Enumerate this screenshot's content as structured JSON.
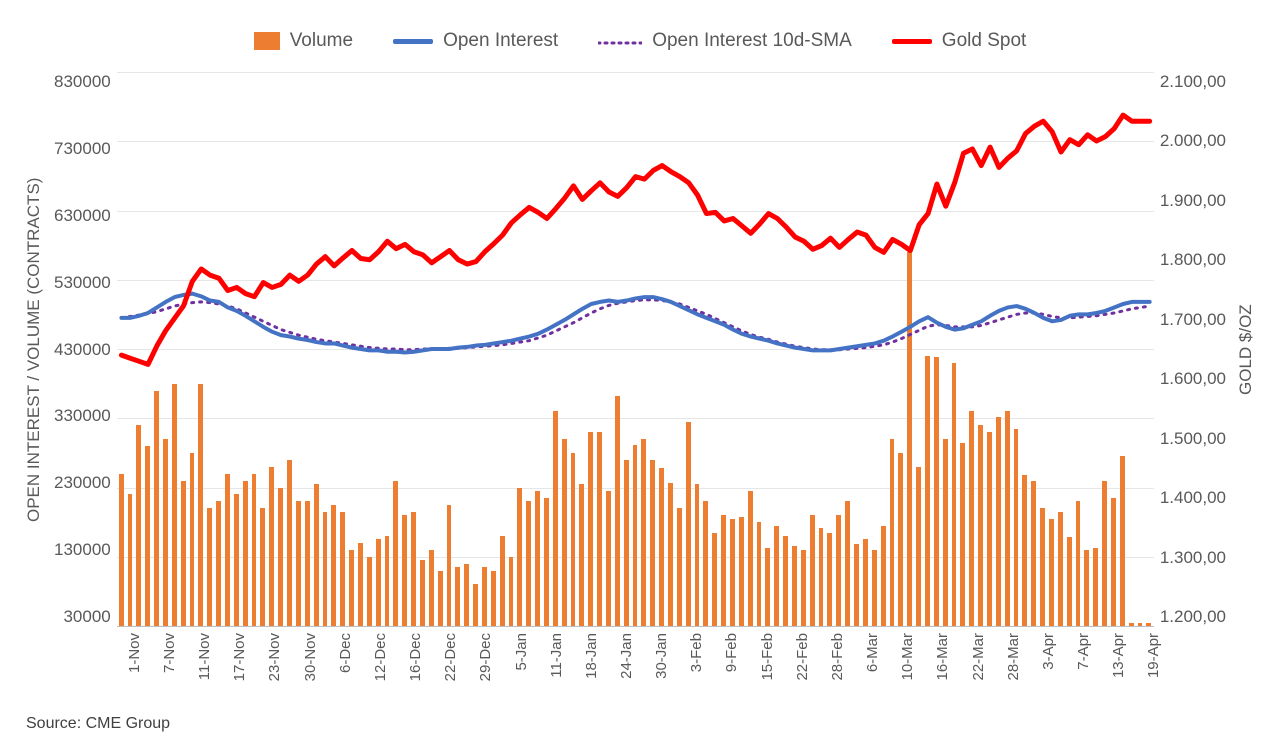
{
  "legend": {
    "volume": "Volume",
    "oi": "Open Interest",
    "oi_sma": "Open Interest 10d-SMA",
    "gold": "Gold Spot"
  },
  "colors": {
    "volume_bar": "#ed7d31",
    "oi_line": "#4472c4",
    "oi_sma_line": "#7030a0",
    "gold_line": "#ff0000",
    "grid": "#e6e6e6",
    "axis_text": "#595959",
    "background": "#ffffff"
  },
  "y_left": {
    "title": "OPEN INTEREST / VOLUME (CONTRACTS)",
    "min": 30000,
    "max": 830000,
    "ticks": [
      830000,
      730000,
      630000,
      530000,
      430000,
      330000,
      230000,
      130000,
      30000
    ],
    "tick_labels": [
      "830000",
      "730000",
      "630000",
      "530000",
      "430000",
      "330000",
      "230000",
      "130000",
      "30000"
    ]
  },
  "y_right": {
    "title": "GOLD $/OZ",
    "min": 1200,
    "max": 2100,
    "ticks": [
      2100,
      2000,
      1900,
      1800,
      1700,
      1600,
      1500,
      1400,
      1300,
      1200
    ],
    "tick_labels": [
      "2.100,00",
      "2.000,00",
      "1.900,00",
      "1.800,00",
      "1.700,00",
      "1.600,00",
      "1.500,00",
      "1.400,00",
      "1.300,00",
      "1.200,00"
    ]
  },
  "x_labels_visible": [
    "1-Nov",
    "",
    "7-Nov",
    "",
    "11-Nov",
    "",
    "17-Nov",
    "",
    "23-Nov",
    "",
    "30-Nov",
    "",
    "6-Dec",
    "",
    "12-Dec",
    "",
    "16-Dec",
    "",
    "22-Dec",
    "",
    "29-Dec",
    "",
    "5-Jan",
    "",
    "11-Jan",
    "",
    "18-Jan",
    "",
    "24-Jan",
    "",
    "30-Jan",
    "",
    "3-Feb",
    "",
    "9-Feb",
    "",
    "15-Feb",
    "",
    "22-Feb",
    "",
    "28-Feb",
    "",
    "6-Mar",
    "",
    "10-Mar",
    "",
    "16-Mar",
    "",
    "22-Mar",
    "",
    "28-Mar",
    "",
    "3-Apr",
    "",
    "7-Apr",
    "",
    "13-Apr",
    "",
    "19-Apr"
  ],
  "series": {
    "n_points": 117,
    "volume": [
      250000,
      220000,
      320000,
      290000,
      370000,
      300000,
      380000,
      240000,
      280000,
      380000,
      200000,
      210000,
      250000,
      220000,
      240000,
      250000,
      200000,
      260000,
      230000,
      270000,
      210000,
      210000,
      235000,
      195000,
      205000,
      195000,
      140000,
      150000,
      130000,
      155000,
      160000,
      240000,
      190000,
      195000,
      125000,
      140000,
      110000,
      205000,
      115000,
      120000,
      90000,
      115000,
      110000,
      160000,
      130000,
      230000,
      210000,
      225000,
      215000,
      340000,
      300000,
      280000,
      235000,
      310000,
      310000,
      225000,
      362000,
      270000,
      292000,
      300000,
      270000,
      258000,
      237000,
      200000,
      325000,
      235000,
      210000,
      165000,
      190000,
      185000,
      188000,
      225000,
      180000,
      142000,
      175000,
      160000,
      145000,
      140000,
      190000,
      172000,
      165000,
      190000,
      210000,
      148000,
      155000,
      140000,
      175000,
      300000,
      280000,
      570000,
      260000,
      420000,
      418000,
      300000,
      410000,
      295000,
      340000,
      320000,
      310000,
      332000,
      340000,
      315000,
      248000,
      240000,
      200000,
      185000,
      195000,
      158000,
      210000,
      140000,
      142000,
      240000,
      215000,
      275000,
      35000,
      35000,
      35000
    ],
    "open_interest": [
      475000,
      475000,
      478000,
      482000,
      490000,
      498000,
      505000,
      508000,
      510000,
      506000,
      500000,
      498000,
      490000,
      485000,
      478000,
      470000,
      462000,
      455000,
      450000,
      448000,
      445000,
      443000,
      440000,
      438000,
      438000,
      435000,
      432000,
      430000,
      428000,
      428000,
      426000,
      426000,
      425000,
      426000,
      428000,
      430000,
      430000,
      430000,
      432000,
      433000,
      435000,
      436000,
      438000,
      440000,
      442000,
      445000,
      448000,
      452000,
      458000,
      465000,
      472000,
      480000,
      488000,
      495000,
      498000,
      500000,
      498000,
      500000,
      503000,
      505000,
      505000,
      502000,
      498000,
      492000,
      486000,
      480000,
      475000,
      470000,
      465000,
      458000,
      452000,
      448000,
      445000,
      442000,
      438000,
      435000,
      432000,
      430000,
      428000,
      428000,
      428000,
      430000,
      432000,
      434000,
      436000,
      438000,
      442000,
      448000,
      455000,
      462000,
      470000,
      476000,
      468000,
      462000,
      458000,
      460000,
      465000,
      470000,
      478000,
      485000,
      490000,
      492000,
      488000,
      482000,
      475000,
      470000,
      472000,
      478000,
      480000,
      480000,
      482000,
      485000,
      490000,
      495000,
      498000,
      498000,
      498000
    ],
    "oi_sma": [
      475000,
      477000,
      479000,
      481000,
      484000,
      488000,
      492000,
      495000,
      497000,
      498000,
      497000,
      495000,
      492000,
      488000,
      482000,
      476000,
      470000,
      464000,
      458000,
      454000,
      450000,
      447000,
      444000,
      442000,
      440000,
      438000,
      436000,
      434000,
      432000,
      431000,
      430000,
      430000,
      429000,
      429000,
      430000,
      430000,
      430000,
      431000,
      431000,
      432000,
      433000,
      434000,
      435000,
      436000,
      438000,
      440000,
      442000,
      446000,
      450000,
      456000,
      462000,
      468000,
      475000,
      482000,
      488000,
      493000,
      496000,
      498000,
      500000,
      501000,
      501000,
      500000,
      498000,
      495000,
      490000,
      485000,
      480000,
      474000,
      468000,
      462000,
      456000,
      451000,
      447000,
      444000,
      440000,
      437000,
      434000,
      432000,
      430000,
      429000,
      429000,
      429000,
      430000,
      431000,
      432000,
      434000,
      436000,
      440000,
      445000,
      451000,
      457000,
      463000,
      465000,
      464000,
      462000,
      462000,
      462000,
      464000,
      468000,
      472000,
      476000,
      480000,
      482000,
      482000,
      480000,
      477000,
      475000,
      475000,
      476000,
      477000,
      478000,
      480000,
      482000,
      485000,
      488000,
      490000,
      492000
    ],
    "gold_spot": [
      1640,
      1635,
      1630,
      1625,
      1655,
      1680,
      1700,
      1720,
      1760,
      1780,
      1770,
      1765,
      1745,
      1750,
      1740,
      1735,
      1758,
      1750,
      1755,
      1770,
      1760,
      1770,
      1788,
      1800,
      1785,
      1798,
      1810,
      1797,
      1795,
      1808,
      1825,
      1813,
      1820,
      1808,
      1803,
      1790,
      1800,
      1810,
      1795,
      1788,
      1792,
      1808,
      1821,
      1835,
      1855,
      1868,
      1880,
      1872,
      1862,
      1878,
      1895,
      1915,
      1893,
      1907,
      1920,
      1905,
      1898,
      1912,
      1930,
      1926,
      1940,
      1948,
      1938,
      1930,
      1920,
      1900,
      1870,
      1872,
      1858,
      1862,
      1850,
      1838,
      1853,
      1870,
      1862,
      1848,
      1832,
      1825,
      1812,
      1818,
      1830,
      1815,
      1828,
      1840,
      1835,
      1815,
      1807,
      1828,
      1820,
      1810,
      1852,
      1870,
      1918,
      1882,
      1920,
      1968,
      1975,
      1948,
      1978,
      1945,
      1960,
      1972,
      2000,
      2012,
      2020,
      2003,
      1970,
      1990,
      1982,
      1998,
      1988,
      1995,
      2008,
      2030,
      2020,
      2020,
      2020
    ]
  },
  "styles": {
    "bar_width_ratio": 0.55,
    "oi_line_width": 4,
    "oi_sma_line_width": 3,
    "oi_sma_dash": "2 6",
    "gold_line_width": 5,
    "legend_fontsize": 19,
    "axis_label_fontsize": 17,
    "x_tick_fontsize": 15
  },
  "source_text": "Source: CME Group"
}
